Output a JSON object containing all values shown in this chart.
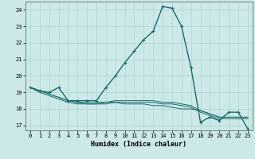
{
  "title": "",
  "xlabel": "Humidex (Indice chaleur)",
  "ylabel": "",
  "background_color": "#cce8e8",
  "line_color": "#1a6b6b",
  "grid_color": "#afd4d4",
  "x_values": [
    0,
    1,
    2,
    3,
    4,
    5,
    6,
    7,
    8,
    9,
    10,
    11,
    12,
    13,
    14,
    15,
    16,
    17,
    18,
    19,
    20,
    21,
    22,
    23
  ],
  "series": [
    [
      19.3,
      19.1,
      19.0,
      19.3,
      18.5,
      18.5,
      18.5,
      18.5,
      19.3,
      20.0,
      20.8,
      21.5,
      22.2,
      22.7,
      24.2,
      24.1,
      23.0,
      20.5,
      17.2,
      17.5,
      17.3,
      17.8,
      17.8,
      16.8
    ],
    [
      19.3,
      19.1,
      18.9,
      18.7,
      18.5,
      18.4,
      18.4,
      18.4,
      18.4,
      18.4,
      18.3,
      18.3,
      18.3,
      18.2,
      18.2,
      18.1,
      18.0,
      18.0,
      17.9,
      17.7,
      17.5,
      17.5,
      17.5,
      17.5
    ],
    [
      19.3,
      19.1,
      18.9,
      18.7,
      18.5,
      18.4,
      18.3,
      18.3,
      18.4,
      18.5,
      18.5,
      18.5,
      18.5,
      18.5,
      18.4,
      18.4,
      18.3,
      18.2,
      17.9,
      17.7,
      17.5,
      17.5,
      17.5,
      17.5
    ],
    [
      19.3,
      19.0,
      18.8,
      18.6,
      18.4,
      18.3,
      18.3,
      18.3,
      18.3,
      18.4,
      18.4,
      18.4,
      18.4,
      18.4,
      18.3,
      18.3,
      18.2,
      18.1,
      17.8,
      17.6,
      17.4,
      17.4,
      17.4,
      17.4
    ]
  ],
  "ylim": [
    16.7,
    24.5
  ],
  "xlim": [
    -0.5,
    23.5
  ],
  "yticks": [
    17,
    18,
    19,
    20,
    21,
    22,
    23,
    24
  ],
  "xticks": [
    0,
    1,
    2,
    3,
    4,
    5,
    6,
    7,
    8,
    9,
    10,
    11,
    12,
    13,
    14,
    15,
    16,
    17,
    18,
    19,
    20,
    21,
    22,
    23
  ],
  "marker": "+",
  "marker_size": 3.5,
  "line_width": 1.0,
  "axis_fontsize": 6.0,
  "tick_fontsize": 5.0
}
